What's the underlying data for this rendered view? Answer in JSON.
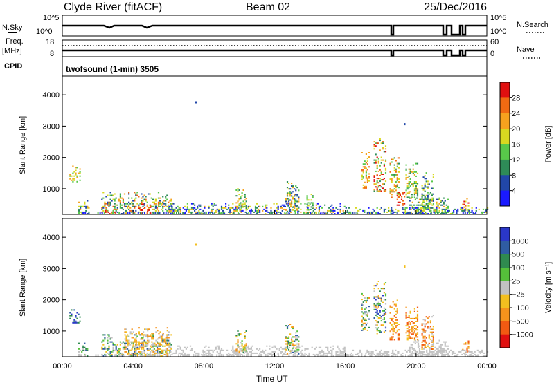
{
  "header": {
    "station": "Clyde River (fitACF)",
    "beam": "Beam 02",
    "date": "25/Dec/2016"
  },
  "status_panel": {
    "nsky_label": "N.Sky",
    "nsearch_label": "N.Search",
    "freq_label_1": "Freq.",
    "freq_label_2": "[MHz]",
    "nave_label": "Nave",
    "cpid_label": "CPID",
    "noise_ticks_left": [
      "10^5",
      "10^0"
    ],
    "noise_ticks_right": [
      "10^5",
      "10^0"
    ],
    "freq_ticks": [
      "18",
      "8"
    ],
    "nave_ticks": [
      "60",
      "0"
    ],
    "program": "twofsound (1-min) 3505"
  },
  "colors": {
    "power": [
      "#1a1aff",
      "#2147a8",
      "#2e8b57",
      "#58c84a",
      "#d8d820",
      "#f6a21e",
      "#f06a12",
      "#e01010"
    ],
    "velocity": [
      "#2a37c8",
      "#2f5ca3",
      "#2f8a4f",
      "#55c03a",
      "#c2c2c2",
      "#f3bf1f",
      "#f5931c",
      "#f25a12",
      "#e01010"
    ]
  },
  "chart_data": [
    {
      "type": "heatmap",
      "name": "power",
      "xlabel": "",
      "ylabel": "Slant Range [km]",
      "x_ticks": [
        "00:00",
        "04:00",
        "08:00",
        "12:00",
        "16:00",
        "20:00",
        "00:00"
      ],
      "y_ticks": [
        1000,
        2000,
        3000,
        4000
      ],
      "xlim": [
        0,
        24
      ],
      "ylim": [
        180,
        4600
      ],
      "colorbar": {
        "label": "Power [dB]",
        "ticks": [
          4,
          8,
          12,
          16,
          20,
          24,
          28
        ],
        "range": [
          0,
          32
        ]
      },
      "regions": [
        {
          "t": [
            0.4,
            1.0
          ],
          "r": [
            1200,
            1700
          ],
          "level": [
            3,
            5
          ]
        },
        {
          "t": [
            0.9,
            1.5
          ],
          "r": [
            180,
            600
          ],
          "level": [
            1,
            5
          ]
        },
        {
          "t": [
            2.2,
            6.2
          ],
          "r": [
            180,
            900
          ],
          "level": [
            1,
            6
          ]
        },
        {
          "t": [
            2.4,
            3.0
          ],
          "r": [
            180,
            350
          ],
          "level": [
            6,
            7
          ]
        },
        {
          "t": [
            4.3,
            5.0
          ],
          "r": [
            200,
            500
          ],
          "level": [
            6,
            7
          ]
        },
        {
          "t": [
            6.0,
            16.0
          ],
          "r": [
            180,
            500
          ],
          "level": [
            0,
            5
          ]
        },
        {
          "t": [
            9.8,
            10.4
          ],
          "r": [
            300,
            1000
          ],
          "level": [
            2,
            5
          ]
        },
        {
          "t": [
            12.6,
            13.4
          ],
          "r": [
            250,
            1200
          ],
          "level": [
            1,
            5
          ]
        },
        {
          "t": [
            13.8,
            14.2
          ],
          "r": [
            300,
            900
          ],
          "level": [
            2,
            4
          ]
        },
        {
          "t": [
            16.9,
            17.3
          ],
          "r": [
            1000,
            2200
          ],
          "level": [
            3,
            6
          ]
        },
        {
          "t": [
            17.6,
            18.3
          ],
          "r": [
            900,
            2600
          ],
          "level": [
            2,
            7
          ]
        },
        {
          "t": [
            18.5,
            19.0
          ],
          "r": [
            700,
            2000
          ],
          "level": [
            2,
            6
          ]
        },
        {
          "t": [
            18.9,
            19.3
          ],
          "r": [
            450,
            900
          ],
          "level": [
            6,
            7
          ]
        },
        {
          "t": [
            19.4,
            20.1
          ],
          "r": [
            700,
            1800
          ],
          "level": [
            2,
            5
          ]
        },
        {
          "t": [
            19.6,
            21.8
          ],
          "r": [
            180,
            700
          ],
          "level": [
            1,
            5
          ]
        },
        {
          "t": [
            20.3,
            21.0
          ],
          "r": [
            400,
            1500
          ],
          "level": [
            1,
            4
          ]
        },
        {
          "t": [
            22.6,
            23.0
          ],
          "r": [
            250,
            700
          ],
          "level": [
            3,
            7
          ]
        },
        {
          "t": [
            16.0,
            24.0
          ],
          "r": [
            180,
            400
          ],
          "level": [
            0,
            4
          ]
        }
      ],
      "isolated_points": [
        {
          "t": 7.5,
          "r": 3750
        },
        {
          "t": 19.3,
          "r": 3050
        }
      ]
    },
    {
      "type": "heatmap",
      "name": "velocity",
      "xlabel": "Time UT",
      "ylabel": "Slant Range [km]",
      "x_ticks": [
        "00:00",
        "04:00",
        "08:00",
        "12:00",
        "16:00",
        "20:00",
        "00:00"
      ],
      "y_ticks": [
        1000,
        2000,
        3000,
        4000
      ],
      "xlim": [
        0,
        24
      ],
      "ylim": [
        180,
        4600
      ],
      "colorbar": {
        "label": "Velocity [m s⁻¹]",
        "ticks": [
          "1000",
          "500",
          "100",
          "25",
          "−25",
          "−100",
          "−500",
          "−1000"
        ]
      },
      "regions": [
        {
          "t": [
            0.4,
            1.0
          ],
          "r": [
            1200,
            1700
          ],
          "level": [
            0,
            2
          ]
        },
        {
          "t": [
            0.9,
            1.5
          ],
          "r": [
            180,
            600
          ],
          "level": [
            1,
            4
          ]
        },
        {
          "t": [
            2.2,
            6.2
          ],
          "r": [
            180,
            900
          ],
          "level": [
            1,
            5
          ]
        },
        {
          "t": [
            3.5,
            6.0
          ],
          "r": [
            180,
            1100
          ],
          "level": [
            4,
            6
          ]
        },
        {
          "t": [
            6.0,
            16.0
          ],
          "r": [
            180,
            500
          ],
          "level": [
            4,
            4
          ]
        },
        {
          "t": [
            9.8,
            10.4
          ],
          "r": [
            300,
            1000
          ],
          "level": [
            2,
            6
          ]
        },
        {
          "t": [
            12.6,
            13.4
          ],
          "r": [
            250,
            1200
          ],
          "level": [
            1,
            6
          ]
        },
        {
          "t": [
            16.9,
            17.3
          ],
          "r": [
            1000,
            2200
          ],
          "level": [
            1,
            6
          ]
        },
        {
          "t": [
            17.6,
            18.3
          ],
          "r": [
            900,
            2600
          ],
          "level": [
            0,
            6
          ]
        },
        {
          "t": [
            18.5,
            19.0
          ],
          "r": [
            700,
            2000
          ],
          "level": [
            5,
            7
          ]
        },
        {
          "t": [
            19.4,
            20.1
          ],
          "r": [
            700,
            1800
          ],
          "level": [
            5,
            7
          ]
        },
        {
          "t": [
            19.6,
            21.8
          ],
          "r": [
            180,
            700
          ],
          "level": [
            4,
            4
          ]
        },
        {
          "t": [
            20.3,
            21.0
          ],
          "r": [
            400,
            1500
          ],
          "level": [
            4,
            7
          ]
        },
        {
          "t": [
            22.6,
            23.0
          ],
          "r": [
            250,
            700
          ],
          "level": [
            5,
            7
          ]
        },
        {
          "t": [
            16.0,
            24.0
          ],
          "r": [
            180,
            400
          ],
          "level": [
            4,
            4
          ]
        }
      ],
      "isolated_points": [
        {
          "t": 7.5,
          "r": 3750
        },
        {
          "t": 19.3,
          "r": 3050
        }
      ]
    }
  ]
}
